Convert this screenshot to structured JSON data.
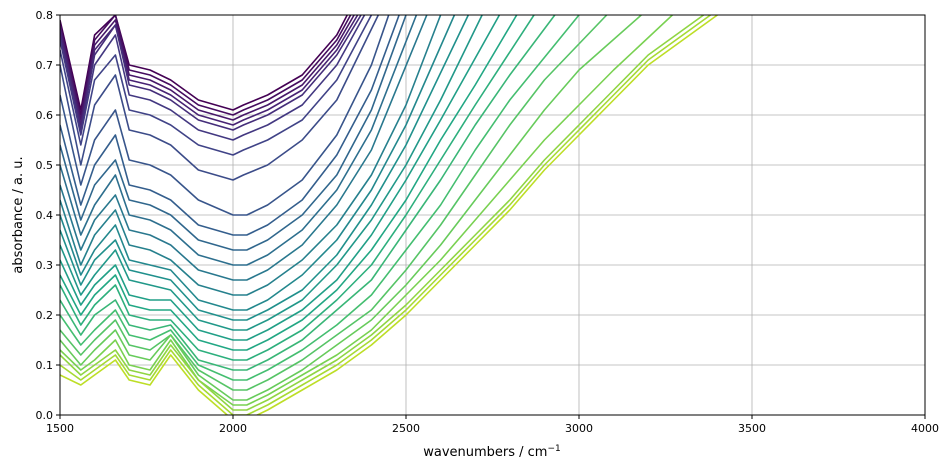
{
  "chart_data": {
    "type": "line",
    "title": "",
    "xlabel": "wavenumbers / cm",
    "xlabel_sup": "−1",
    "ylabel": "absorbance / a. u.",
    "xlim": [
      1500,
      4000
    ],
    "ylim": [
      0,
      0.8
    ],
    "xticks": [
      "1500",
      "2000",
      "2500",
      "3000",
      "3500",
      "4000"
    ],
    "yticks": [
      "0.0",
      "0.1",
      "0.2",
      "0.3",
      "0.4",
      "0.5",
      "0.6",
      "0.7",
      "0.8"
    ],
    "grid": true,
    "legend": "none",
    "colormap": "viridis",
    "colors": {
      "grid": "#b0b0b0",
      "axes": "#000000",
      "series_dark": "#440154",
      "series_mid": "#21918c",
      "series_light": "#d8e219"
    },
    "series": [
      {
        "x": [
          1500,
          1560,
          1600,
          1660,
          1700,
          1760,
          1820,
          1900,
          2000,
          2030,
          2100,
          2200,
          2300,
          2330
        ],
        "y": [
          0.79,
          0.61,
          0.76,
          0.8,
          0.7,
          0.69,
          0.67,
          0.63,
          0.61,
          0.62,
          0.64,
          0.68,
          0.76,
          0.8
        ]
      },
      {
        "x": [
          1500,
          1560,
          1600,
          1660,
          1700,
          1760,
          1820,
          1900,
          2000,
          2030,
          2100,
          2200,
          2300,
          2340
        ],
        "y": [
          0.78,
          0.6,
          0.75,
          0.8,
          0.69,
          0.68,
          0.66,
          0.62,
          0.6,
          0.61,
          0.63,
          0.67,
          0.75,
          0.8
        ]
      },
      {
        "x": [
          1500,
          1560,
          1600,
          1660,
          1700,
          1760,
          1820,
          1900,
          2000,
          2030,
          2100,
          2200,
          2300,
          2350
        ],
        "y": [
          0.78,
          0.59,
          0.74,
          0.79,
          0.68,
          0.67,
          0.65,
          0.61,
          0.59,
          0.6,
          0.62,
          0.66,
          0.74,
          0.8
        ]
      },
      {
        "x": [
          1500,
          1560,
          1600,
          1660,
          1700,
          1760,
          1820,
          1900,
          2000,
          2030,
          2100,
          2200,
          2300,
          2360
        ],
        "y": [
          0.77,
          0.58,
          0.73,
          0.78,
          0.67,
          0.66,
          0.64,
          0.6,
          0.58,
          0.59,
          0.61,
          0.65,
          0.73,
          0.8
        ]
      },
      {
        "x": [
          1500,
          1560,
          1600,
          1660,
          1700,
          1760,
          1820,
          1900,
          2000,
          2030,
          2100,
          2200,
          2300,
          2370
        ],
        "y": [
          0.76,
          0.57,
          0.72,
          0.78,
          0.66,
          0.65,
          0.63,
          0.59,
          0.57,
          0.58,
          0.6,
          0.64,
          0.72,
          0.8
        ]
      },
      {
        "x": [
          1500,
          1560,
          1600,
          1660,
          1700,
          1760,
          1820,
          1900,
          2000,
          2030,
          2100,
          2200,
          2300,
          2380
        ],
        "y": [
          0.75,
          0.56,
          0.7,
          0.76,
          0.64,
          0.63,
          0.61,
          0.57,
          0.55,
          0.56,
          0.58,
          0.62,
          0.7,
          0.8
        ]
      },
      {
        "x": [
          1500,
          1560,
          1600,
          1660,
          1700,
          1760,
          1820,
          1900,
          2000,
          2030,
          2100,
          2200,
          2300,
          2400
        ],
        "y": [
          0.73,
          0.54,
          0.67,
          0.72,
          0.61,
          0.6,
          0.58,
          0.54,
          0.52,
          0.53,
          0.55,
          0.59,
          0.67,
          0.8
        ]
      },
      {
        "x": [
          1500,
          1560,
          1600,
          1660,
          1700,
          1760,
          1820,
          1900,
          2000,
          2030,
          2100,
          2200,
          2300,
          2420
        ],
        "y": [
          0.7,
          0.5,
          0.62,
          0.68,
          0.57,
          0.56,
          0.54,
          0.49,
          0.47,
          0.48,
          0.5,
          0.55,
          0.63,
          0.8
        ]
      },
      {
        "x": [
          1500,
          1560,
          1600,
          1660,
          1700,
          1760,
          1820,
          1900,
          2000,
          2040,
          2100,
          2200,
          2300,
          2400,
          2450
        ],
        "y": [
          0.64,
          0.46,
          0.55,
          0.61,
          0.51,
          0.5,
          0.48,
          0.43,
          0.4,
          0.4,
          0.42,
          0.47,
          0.56,
          0.7,
          0.8
        ]
      },
      {
        "x": [
          1500,
          1560,
          1600,
          1660,
          1700,
          1760,
          1820,
          1900,
          2000,
          2040,
          2100,
          2200,
          2300,
          2400,
          2480
        ],
        "y": [
          0.58,
          0.42,
          0.5,
          0.56,
          0.46,
          0.45,
          0.43,
          0.38,
          0.36,
          0.36,
          0.38,
          0.43,
          0.52,
          0.65,
          0.8
        ]
      },
      {
        "x": [
          1500,
          1560,
          1600,
          1660,
          1700,
          1760,
          1820,
          1900,
          2000,
          2040,
          2100,
          2200,
          2300,
          2400,
          2500
        ],
        "y": [
          0.54,
          0.39,
          0.46,
          0.51,
          0.43,
          0.42,
          0.4,
          0.35,
          0.33,
          0.33,
          0.35,
          0.4,
          0.48,
          0.61,
          0.8
        ]
      },
      {
        "x": [
          1500,
          1560,
          1600,
          1660,
          1700,
          1760,
          1820,
          1900,
          2000,
          2040,
          2100,
          2200,
          2300,
          2400,
          2530
        ],
        "y": [
          0.5,
          0.36,
          0.42,
          0.48,
          0.4,
          0.39,
          0.37,
          0.32,
          0.3,
          0.3,
          0.32,
          0.37,
          0.45,
          0.57,
          0.8
        ]
      },
      {
        "x": [
          1500,
          1560,
          1600,
          1660,
          1700,
          1760,
          1820,
          1900,
          2000,
          2040,
          2100,
          2200,
          2300,
          2400,
          2560
        ],
        "y": [
          0.46,
          0.33,
          0.39,
          0.44,
          0.37,
          0.36,
          0.34,
          0.29,
          0.27,
          0.27,
          0.29,
          0.34,
          0.42,
          0.53,
          0.8
        ]
      },
      {
        "x": [
          1500,
          1560,
          1600,
          1660,
          1700,
          1760,
          1820,
          1900,
          2000,
          2040,
          2100,
          2200,
          2300,
          2400,
          2500,
          2600
        ],
        "y": [
          0.43,
          0.3,
          0.36,
          0.41,
          0.34,
          0.33,
          0.31,
          0.26,
          0.24,
          0.24,
          0.26,
          0.31,
          0.38,
          0.48,
          0.62,
          0.8
        ]
      },
      {
        "x": [
          1500,
          1560,
          1600,
          1660,
          1700,
          1760,
          1820,
          1900,
          2000,
          2040,
          2100,
          2200,
          2300,
          2400,
          2500,
          2640
        ],
        "y": [
          0.4,
          0.28,
          0.33,
          0.38,
          0.31,
          0.3,
          0.29,
          0.23,
          0.21,
          0.21,
          0.23,
          0.28,
          0.35,
          0.45,
          0.58,
          0.8
        ]
      },
      {
        "x": [
          1500,
          1560,
          1600,
          1660,
          1700,
          1760,
          1820,
          1900,
          2000,
          2040,
          2100,
          2200,
          2300,
          2400,
          2500,
          2680
        ],
        "y": [
          0.37,
          0.26,
          0.31,
          0.35,
          0.29,
          0.28,
          0.27,
          0.21,
          0.19,
          0.19,
          0.21,
          0.25,
          0.32,
          0.42,
          0.54,
          0.8
        ]
      },
      {
        "x": [
          1500,
          1560,
          1600,
          1660,
          1700,
          1760,
          1820,
          1900,
          2000,
          2040,
          2100,
          2200,
          2300,
          2400,
          2500,
          2600,
          2720
        ],
        "y": [
          0.34,
          0.24,
          0.28,
          0.33,
          0.27,
          0.26,
          0.25,
          0.19,
          0.17,
          0.17,
          0.19,
          0.23,
          0.3,
          0.39,
          0.5,
          0.63,
          0.8
        ]
      },
      {
        "x": [
          1500,
          1560,
          1600,
          1660,
          1700,
          1760,
          1820,
          1900,
          2000,
          2040,
          2100,
          2200,
          2300,
          2400,
          2500,
          2600,
          2770
        ],
        "y": [
          0.31,
          0.22,
          0.26,
          0.3,
          0.24,
          0.23,
          0.23,
          0.17,
          0.15,
          0.15,
          0.17,
          0.21,
          0.27,
          0.36,
          0.47,
          0.59,
          0.8
        ]
      },
      {
        "x": [
          1500,
          1560,
          1600,
          1660,
          1700,
          1760,
          1820,
          1900,
          2000,
          2040,
          2100,
          2200,
          2300,
          2400,
          2500,
          2600,
          2700,
          2820
        ],
        "y": [
          0.28,
          0.2,
          0.24,
          0.28,
          0.22,
          0.21,
          0.21,
          0.15,
          0.13,
          0.13,
          0.15,
          0.19,
          0.25,
          0.33,
          0.43,
          0.55,
          0.66,
          0.8
        ]
      },
      {
        "x": [
          1500,
          1560,
          1600,
          1660,
          1700,
          1760,
          1820,
          1900,
          2000,
          2040,
          2100,
          2200,
          2300,
          2400,
          2500,
          2600,
          2700,
          2870
        ],
        "y": [
          0.26,
          0.18,
          0.22,
          0.26,
          0.2,
          0.19,
          0.19,
          0.13,
          0.11,
          0.11,
          0.13,
          0.17,
          0.23,
          0.3,
          0.4,
          0.51,
          0.62,
          0.8
        ]
      },
      {
        "x": [
          1500,
          1560,
          1600,
          1660,
          1700,
          1760,
          1820,
          1900,
          2000,
          2040,
          2100,
          2200,
          2300,
          2400,
          2500,
          2600,
          2700,
          2800,
          2930
        ],
        "y": [
          0.23,
          0.16,
          0.2,
          0.23,
          0.18,
          0.17,
          0.18,
          0.11,
          0.09,
          0.09,
          0.11,
          0.15,
          0.21,
          0.27,
          0.37,
          0.47,
          0.58,
          0.68,
          0.8
        ]
      },
      {
        "x": [
          1500,
          1560,
          1600,
          1660,
          1700,
          1760,
          1820,
          1900,
          2000,
          2040,
          2100,
          2200,
          2300,
          2400,
          2500,
          2600,
          2700,
          2800,
          3000
        ],
        "y": [
          0.2,
          0.14,
          0.17,
          0.21,
          0.16,
          0.15,
          0.17,
          0.1,
          0.07,
          0.07,
          0.09,
          0.13,
          0.18,
          0.24,
          0.33,
          0.42,
          0.53,
          0.63,
          0.8
        ]
      },
      {
        "x": [
          1500,
          1560,
          1600,
          1660,
          1700,
          1760,
          1820,
          1900,
          2000,
          2040,
          2100,
          2200,
          2300,
          2400,
          2500,
          2600,
          2700,
          2800,
          2900,
          3080
        ],
        "y": [
          0.17,
          0.12,
          0.15,
          0.19,
          0.14,
          0.13,
          0.16,
          0.09,
          0.05,
          0.05,
          0.07,
          0.11,
          0.16,
          0.21,
          0.29,
          0.38,
          0.48,
          0.58,
          0.67,
          0.8
        ]
      },
      {
        "x": [
          1500,
          1560,
          1600,
          1660,
          1700,
          1760,
          1820,
          1900,
          2000,
          2040,
          2100,
          2200,
          2300,
          2400,
          2500,
          2600,
          2700,
          2800,
          2900,
          3000,
          3180
        ],
        "y": [
          0.15,
          0.1,
          0.13,
          0.17,
          0.12,
          0.11,
          0.16,
          0.08,
          0.03,
          0.03,
          0.05,
          0.09,
          0.14,
          0.19,
          0.26,
          0.34,
          0.43,
          0.52,
          0.61,
          0.69,
          0.8
        ]
      },
      {
        "x": [
          1500,
          1560,
          1600,
          1660,
          1700,
          1760,
          1820,
          1900,
          2000,
          2040,
          2100,
          2200,
          2300,
          2400,
          2500,
          2600,
          2700,
          2800,
          2900,
          3000,
          3100,
          3270
        ],
        "y": [
          0.13,
          0.09,
          0.11,
          0.15,
          0.1,
          0.09,
          0.15,
          0.07,
          0.02,
          0.02,
          0.04,
          0.08,
          0.12,
          0.17,
          0.24,
          0.31,
          0.39,
          0.47,
          0.55,
          0.62,
          0.69,
          0.8
        ]
      },
      {
        "x": [
          1500,
          1560,
          1600,
          1660,
          1700,
          1760,
          1820,
          1900,
          2000,
          2040,
          2100,
          2200,
          2300,
          2400,
          2500,
          2600,
          2700,
          2800,
          2900,
          3000,
          3100,
          3200,
          3360
        ],
        "y": [
          0.12,
          0.08,
          0.1,
          0.13,
          0.09,
          0.08,
          0.14,
          0.07,
          0.01,
          0.01,
          0.03,
          0.07,
          0.11,
          0.16,
          0.22,
          0.29,
          0.36,
          0.43,
          0.51,
          0.58,
          0.65,
          0.72,
          0.8
        ]
      },
      {
        "x": [
          1500,
          1560,
          1600,
          1660,
          1700,
          1760,
          1820,
          1900,
          2000,
          2040,
          2100,
          2200,
          2300,
          2400,
          2500,
          2600,
          2700,
          2800,
          2900,
          3000,
          3100,
          3200,
          3380
        ],
        "y": [
          0.1,
          0.07,
          0.09,
          0.12,
          0.08,
          0.07,
          0.13,
          0.06,
          0.0,
          0.0,
          0.02,
          0.06,
          0.1,
          0.15,
          0.21,
          0.28,
          0.35,
          0.42,
          0.5,
          0.57,
          0.64,
          0.71,
          0.8
        ]
      },
      {
        "x": [
          1500,
          1560,
          1600,
          1660,
          1700,
          1760,
          1820,
          1900,
          2000,
          2040,
          2100,
          2200,
          2300,
          2400,
          2500,
          2600,
          2700,
          2800,
          2900,
          3000,
          3100,
          3200,
          3400
        ],
        "y": [
          0.08,
          0.06,
          0.08,
          0.11,
          0.07,
          0.06,
          0.12,
          0.05,
          -0.01,
          -0.01,
          0.01,
          0.05,
          0.09,
          0.14,
          0.2,
          0.27,
          0.34,
          0.41,
          0.49,
          0.56,
          0.63,
          0.7,
          0.8
        ]
      }
    ]
  }
}
